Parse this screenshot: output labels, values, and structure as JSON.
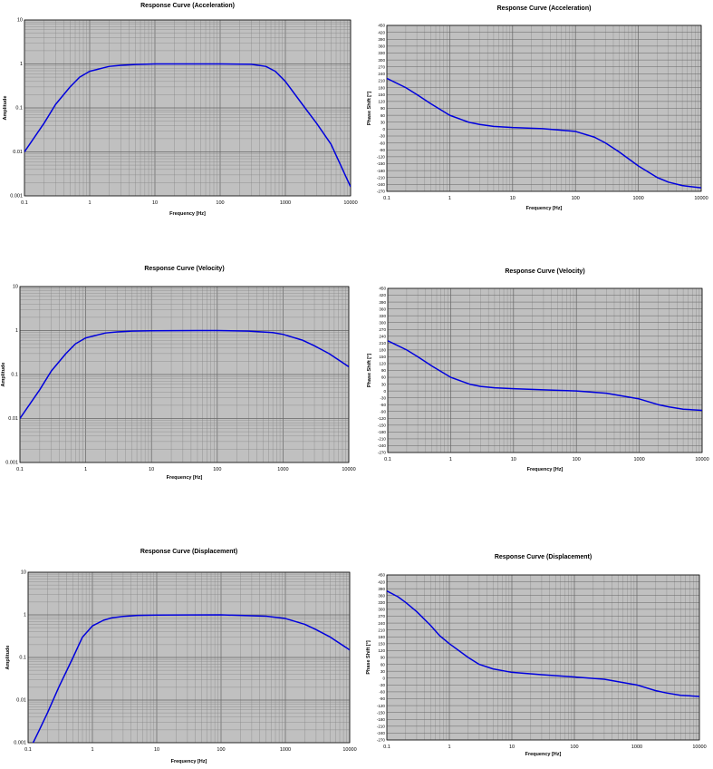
{
  "chart_data": [
    {
      "type": "line",
      "kind": "amplitude",
      "title": "Response Curve (Acceleration)",
      "xlabel": "Frequency [Hz]",
      "ylabel": "Amplitude",
      "xscale": "log",
      "yscale": "log",
      "xlim": [
        0.1,
        10000
      ],
      "ylim": [
        0.001,
        10
      ],
      "xticks": [
        "0.1",
        "1",
        "10",
        "100",
        "1000",
        "10000"
      ],
      "yticks": [
        "10",
        "1",
        "0.1",
        "0.01",
        "0.001"
      ],
      "grid": true,
      "line_color": "#0000dd",
      "plot_bg": "#c0c0c0",
      "x": [
        0.1,
        0.2,
        0.3,
        0.5,
        0.7,
        1,
        2,
        3,
        5,
        10,
        50,
        100,
        300,
        500,
        700,
        1000,
        2000,
        3000,
        5000,
        10000
      ],
      "y": [
        0.01,
        0.045,
        0.12,
        0.3,
        0.5,
        0.68,
        0.88,
        0.93,
        0.97,
        1.0,
        1.0,
        1.0,
        0.98,
        0.88,
        0.68,
        0.4,
        0.1,
        0.045,
        0.015,
        0.0016
      ]
    },
    {
      "type": "line",
      "kind": "phase",
      "title": "Response Curve (Acceleration)",
      "xlabel": "Frequency [Hz]",
      "ylabel": "Phase Shift [°]",
      "xscale": "log",
      "xlim": [
        0.1,
        10000
      ],
      "ylim": [
        -270,
        450
      ],
      "xticks": [
        "0.1",
        "1",
        "10",
        "100",
        "1000",
        "10000"
      ],
      "yticks": [
        "450",
        "420",
        "390",
        "360",
        "330",
        "300",
        "270",
        "240",
        "210",
        "180",
        "150",
        "120",
        "90",
        "60",
        "30",
        "0",
        "-30",
        "-60",
        "-90",
        "-120",
        "-150",
        "-180",
        "-210",
        "-240",
        "-270"
      ],
      "grid": true,
      "line_color": "#0000dd",
      "plot_bg": "#c0c0c0",
      "x": [
        0.1,
        0.2,
        0.3,
        0.5,
        1,
        2,
        3,
        5,
        10,
        30,
        100,
        200,
        300,
        500,
        1000,
        2000,
        3000,
        5000,
        10000
      ],
      "y": [
        220,
        180,
        150,
        110,
        60,
        30,
        20,
        12,
        7,
        2,
        -10,
        -35,
        -60,
        -100,
        -160,
        -210,
        -230,
        -245,
        -255
      ]
    },
    {
      "type": "line",
      "kind": "amplitude",
      "title": "Response Curve (Velocity)",
      "xlabel": "Frequency [Hz]",
      "ylabel": "Amplitude",
      "xscale": "log",
      "yscale": "log",
      "xlim": [
        0.1,
        10000
      ],
      "ylim": [
        0.001,
        10
      ],
      "xticks": [
        "0.1",
        "1",
        "10",
        "100",
        "1000",
        "10000"
      ],
      "yticks": [
        "10",
        "1",
        "0.1",
        "0.01",
        "0.001"
      ],
      "grid": true,
      "line_color": "#0000dd",
      "plot_bg": "#c0c0c0",
      "x": [
        0.1,
        0.2,
        0.3,
        0.5,
        0.7,
        1,
        2,
        3,
        5,
        10,
        50,
        100,
        300,
        700,
        1000,
        2000,
        3000,
        5000,
        10000
      ],
      "y": [
        0.01,
        0.045,
        0.12,
        0.3,
        0.5,
        0.68,
        0.88,
        0.93,
        0.97,
        0.99,
        1.0,
        1.0,
        0.97,
        0.9,
        0.82,
        0.6,
        0.45,
        0.3,
        0.15
      ]
    },
    {
      "type": "line",
      "kind": "phase",
      "title": "Response Curve (Velocity)",
      "xlabel": "Frequency [Hz]",
      "ylabel": "Phase Shift [°]",
      "xscale": "log",
      "xlim": [
        0.1,
        10000
      ],
      "ylim": [
        -270,
        450
      ],
      "xticks": [
        "0.1",
        "1",
        "10",
        "100",
        "1000",
        "10000"
      ],
      "yticks": [
        "450",
        "420",
        "390",
        "360",
        "330",
        "300",
        "270",
        "240",
        "210",
        "180",
        "150",
        "120",
        "90",
        "60",
        "30",
        "0",
        "-30",
        "-60",
        "-90",
        "-120",
        "-150",
        "-180",
        "-210",
        "-240",
        "-270"
      ],
      "grid": true,
      "line_color": "#0000dd",
      "plot_bg": "#c0c0c0",
      "x": [
        0.1,
        0.2,
        0.3,
        0.5,
        1,
        2,
        3,
        5,
        10,
        30,
        100,
        300,
        1000,
        2000,
        3000,
        5000,
        10000
      ],
      "y": [
        220,
        180,
        150,
        110,
        60,
        30,
        20,
        14,
        10,
        5,
        0,
        -10,
        -35,
        -60,
        -70,
        -80,
        -85
      ]
    },
    {
      "type": "line",
      "kind": "amplitude",
      "title": "Response Curve (Displacement)",
      "xlabel": "Frequency [Hz]",
      "ylabel": "Amplitude",
      "xscale": "log",
      "yscale": "log",
      "xlim": [
        0.1,
        10000
      ],
      "ylim": [
        0.001,
        10
      ],
      "xticks": [
        "0.1",
        "1",
        "10",
        "100",
        "1000",
        "10000"
      ],
      "yticks": [
        "10",
        "1",
        "0.1",
        "0.01",
        "0.001"
      ],
      "grid": true,
      "line_color": "#0000dd",
      "plot_bg": "#c0c0c0",
      "x": [
        0.12,
        0.15,
        0.2,
        0.3,
        0.5,
        0.7,
        1,
        1.5,
        2,
        3,
        5,
        10,
        100,
        500,
        1000,
        2000,
        3000,
        5000,
        10000
      ],
      "y": [
        0.001,
        0.002,
        0.005,
        0.02,
        0.1,
        0.3,
        0.55,
        0.75,
        0.85,
        0.92,
        0.97,
        0.99,
        1.0,
        0.93,
        0.82,
        0.6,
        0.45,
        0.3,
        0.15
      ]
    },
    {
      "type": "line",
      "kind": "phase",
      "title": "Response Curve (Displacement)",
      "xlabel": "Frequency [Hz]",
      "ylabel": "Phase Shift [°]",
      "xscale": "log",
      "xlim": [
        0.1,
        10000
      ],
      "ylim": [
        -270,
        450
      ],
      "xticks": [
        "0.1",
        "1",
        "10",
        "100",
        "1000",
        "10000"
      ],
      "yticks": [
        "450",
        "420",
        "390",
        "360",
        "330",
        "300",
        "270",
        "240",
        "210",
        "180",
        "150",
        "120",
        "90",
        "60",
        "30",
        "0",
        "-30",
        "-60",
        "-90",
        "-120",
        "-150",
        "-180",
        "-210",
        "-240",
        "-270"
      ],
      "grid": true,
      "line_color": "#0000dd",
      "plot_bg": "#c0c0c0",
      "x": [
        0.1,
        0.15,
        0.2,
        0.3,
        0.5,
        0.7,
        1,
        2,
        3,
        5,
        10,
        30,
        100,
        300,
        1000,
        2000,
        3000,
        5000,
        10000
      ],
      "y": [
        380,
        355,
        330,
        290,
        230,
        185,
        150,
        90,
        60,
        40,
        25,
        15,
        5,
        -5,
        -30,
        -55,
        -65,
        -75,
        -80
      ]
    }
  ]
}
